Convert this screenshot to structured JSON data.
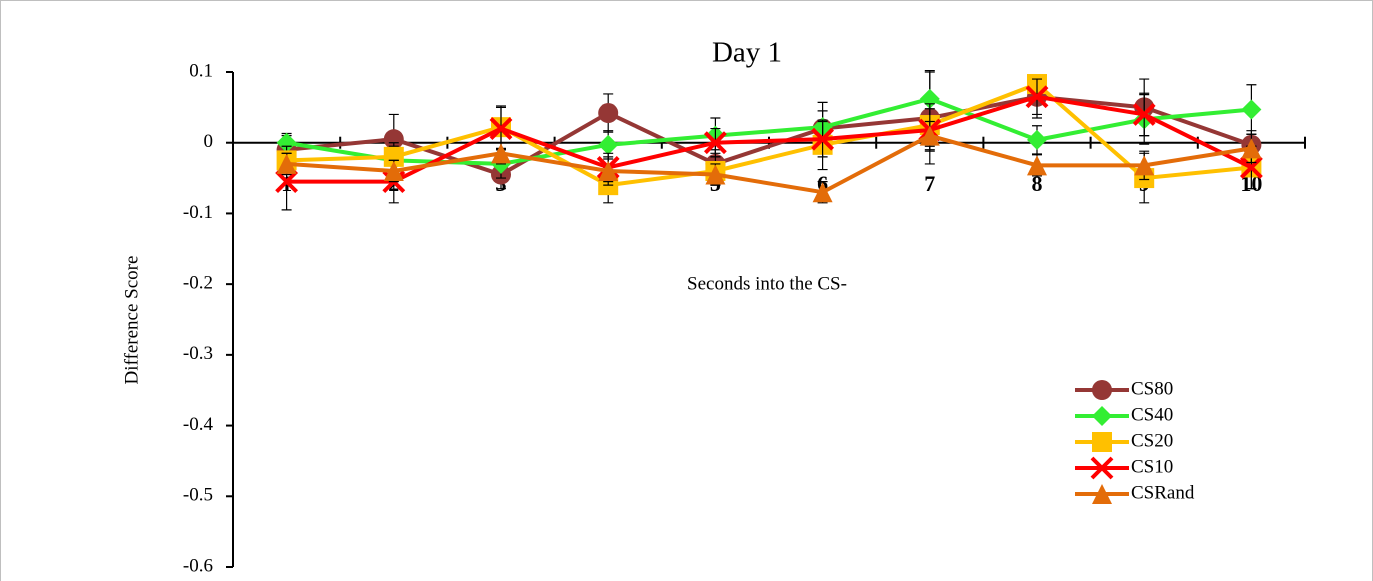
{
  "chart_data": {
    "type": "line",
    "title": "Day 1",
    "x_label": "Seconds into the CS-",
    "y_label": "Difference Score",
    "categories": [
      "1",
      "2",
      "3",
      "4",
      "5",
      "6",
      "7",
      "8",
      "9",
      "10"
    ],
    "ylim": [
      -0.6,
      0.1
    ],
    "yticks": [
      0.1,
      0,
      -0.1,
      -0.2,
      -0.3,
      -0.4,
      -0.5,
      -0.6
    ],
    "legend": "lower-right",
    "series": [
      {
        "name": "CS80",
        "color": "#953735",
        "marker": "circle",
        "values": [
          -0.01,
          0.005,
          -0.045,
          0.042,
          -0.03,
          0.02,
          0.035,
          0.065,
          0.05,
          -0.003
        ],
        "errors": [
          0.02,
          0.035,
          0.02,
          0.027,
          0.02,
          0.025,
          0.065,
          0.03,
          0.04,
          0.02
        ]
      },
      {
        "name": "CS40",
        "color": "#33ee33",
        "marker": "diamond",
        "values": [
          0,
          -0.025,
          -0.03,
          -0.003,
          0.01,
          0.022,
          0.062,
          0.004,
          0.033,
          0.047
        ],
        "errors": [
          0.013,
          0.02,
          0.02,
          0.02,
          0.025,
          0.035,
          0.04,
          0.02,
          0.035,
          0.035
        ]
      },
      {
        "name": "CS20",
        "color": "#ffc000",
        "marker": "square",
        "values": [
          -0.025,
          -0.02,
          0.022,
          -0.06,
          -0.04,
          -0.003,
          0.025,
          0.083,
          -0.05,
          -0.035
        ],
        "errors": [
          0.02,
          0.02,
          0.03,
          0.025,
          0.02,
          0.035,
          0.03,
          0.01,
          0.035,
          0.03
        ]
      },
      {
        "name": "CS10",
        "color": "#ff0000",
        "marker": "x",
        "values": [
          -0.055,
          -0.055,
          0.02,
          -0.035,
          0,
          0.005,
          0.018,
          0.065,
          0.04,
          -0.035
        ],
        "errors": [
          0.04,
          0.03,
          0.03,
          0.02,
          0.02,
          0.025,
          0.03,
          0.025,
          0.03,
          0.03
        ]
      },
      {
        "name": "CSRand",
        "color": "#e36c09",
        "marker": "triangle",
        "values": [
          -0.03,
          -0.04,
          -0.015,
          -0.04,
          -0.045,
          -0.07,
          0.01,
          -0.032,
          -0.032,
          -0.008
        ],
        "errors": [
          0.015,
          0.015,
          0.015,
          0.02,
          0.015,
          0.015,
          0.02,
          0.015,
          0.02,
          0.02
        ]
      }
    ]
  }
}
